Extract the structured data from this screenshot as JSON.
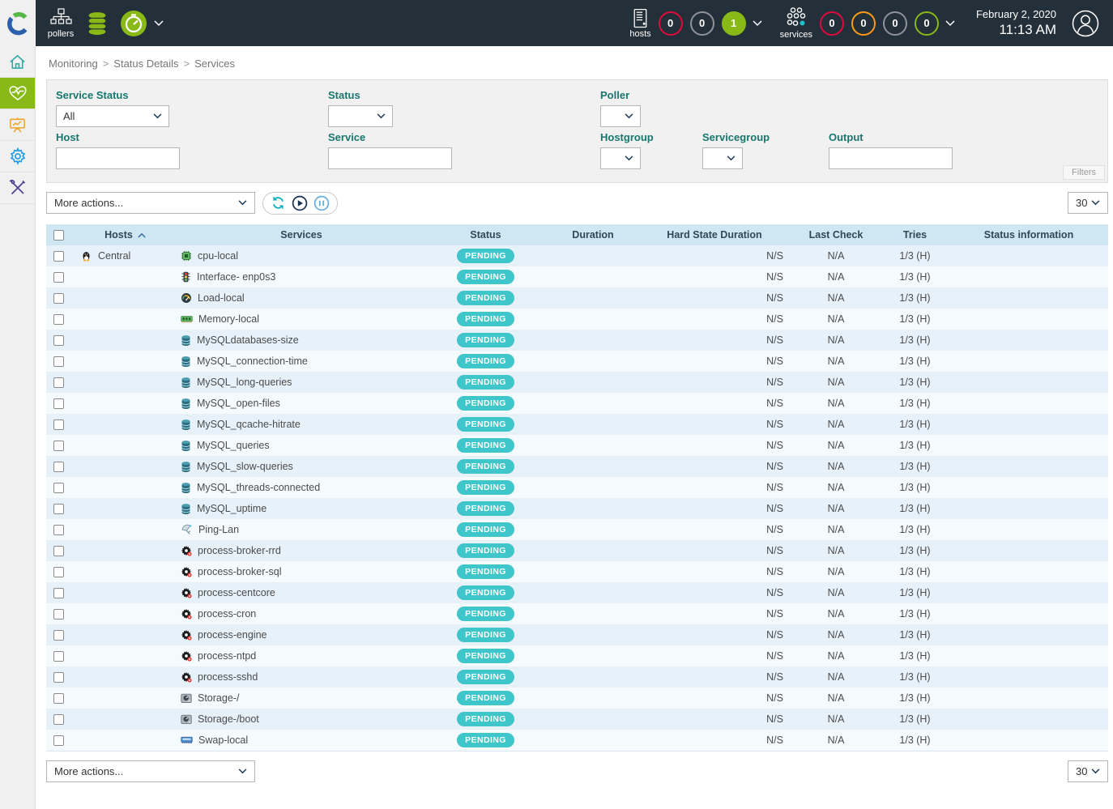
{
  "colors": {
    "critical": "#e00b3c",
    "warning": "#ff9a13",
    "unknown": "#8f9399",
    "ok": "#88b917",
    "pending": "#3ec6ca",
    "topbar_bg": "#232f39",
    "sidebar_active": "#88b917",
    "table_header_bg": "#cfe6f3"
  },
  "topbar": {
    "pollers_label": "pollers",
    "hosts_label": "hosts",
    "hosts_badges": [
      {
        "count": "0",
        "status": "critical",
        "filled": false
      },
      {
        "count": "0",
        "status": "unknown",
        "filled": false
      },
      {
        "count": "1",
        "status": "ok",
        "filled": true
      }
    ],
    "services_label": "services",
    "services_badges": [
      {
        "count": "0",
        "status": "critical",
        "filled": false
      },
      {
        "count": "0",
        "status": "warning",
        "filled": false
      },
      {
        "count": "0",
        "status": "unknown",
        "filled": false
      },
      {
        "count": "0",
        "status": "ok",
        "filled": false
      }
    ],
    "date": "February 2, 2020",
    "time": "11:13 AM"
  },
  "sidebar": {
    "items": [
      {
        "icon": "home-icon",
        "active": false
      },
      {
        "icon": "monitoring-icon",
        "active": true
      },
      {
        "icon": "reporting-icon",
        "active": false
      },
      {
        "icon": "configuration-icon",
        "active": false
      },
      {
        "icon": "administration-icon",
        "active": false
      }
    ]
  },
  "breadcrumb": {
    "items": [
      "Monitoring",
      "Status Details",
      "Services"
    ],
    "separator": ">"
  },
  "filters": {
    "service_status": {
      "label": "Service Status",
      "value": "All"
    },
    "status": {
      "label": "Status",
      "value": ""
    },
    "poller": {
      "label": "Poller",
      "value": ""
    },
    "host": {
      "label": "Host",
      "value": ""
    },
    "service": {
      "label": "Service",
      "value": ""
    },
    "hostgroup": {
      "label": "Hostgroup",
      "value": ""
    },
    "servicegroup": {
      "label": "Servicegroup",
      "value": ""
    },
    "output": {
      "label": "Output",
      "value": ""
    },
    "filters_tab_label": "Filters"
  },
  "toolbar": {
    "more_actions_label": "More actions...",
    "page_size": "30"
  },
  "table": {
    "columns": [
      "Hosts",
      "Services",
      "Status",
      "Duration",
      "Hard State Duration",
      "Last Check",
      "Tries",
      "Status information"
    ],
    "sorted_column": "Hosts",
    "rows": [
      {
        "host": "Central",
        "host_icon": "linux",
        "service": "cpu-local",
        "service_icon": "cpu",
        "status": "PENDING",
        "duration": "",
        "hard_state_duration": "N/S",
        "last_check": "N/A",
        "tries": "1/3 (H)",
        "status_information": ""
      },
      {
        "host": "",
        "host_icon": "",
        "service": "Interface- enp0s3",
        "service_icon": "traffic",
        "status": "PENDING",
        "duration": "",
        "hard_state_duration": "N/S",
        "last_check": "N/A",
        "tries": "1/3 (H)",
        "status_information": ""
      },
      {
        "host": "",
        "host_icon": "",
        "service": "Load-local",
        "service_icon": "gauge",
        "status": "PENDING",
        "duration": "",
        "hard_state_duration": "N/S",
        "last_check": "N/A",
        "tries": "1/3 (H)",
        "status_information": ""
      },
      {
        "host": "",
        "host_icon": "",
        "service": "Memory-local",
        "service_icon": "memory",
        "status": "PENDING",
        "duration": "",
        "hard_state_duration": "N/S",
        "last_check": "N/A",
        "tries": "1/3 (H)",
        "status_information": ""
      },
      {
        "host": "",
        "host_icon": "",
        "service": "MySQLdatabases-size",
        "service_icon": "db",
        "status": "PENDING",
        "duration": "",
        "hard_state_duration": "N/S",
        "last_check": "N/A",
        "tries": "1/3 (H)",
        "status_information": ""
      },
      {
        "host": "",
        "host_icon": "",
        "service": "MySQL_connection-time",
        "service_icon": "db",
        "status": "PENDING",
        "duration": "",
        "hard_state_duration": "N/S",
        "last_check": "N/A",
        "tries": "1/3 (H)",
        "status_information": ""
      },
      {
        "host": "",
        "host_icon": "",
        "service": "MySQL_long-queries",
        "service_icon": "db",
        "status": "PENDING",
        "duration": "",
        "hard_state_duration": "N/S",
        "last_check": "N/A",
        "tries": "1/3 (H)",
        "status_information": ""
      },
      {
        "host": "",
        "host_icon": "",
        "service": "MySQL_open-files",
        "service_icon": "db",
        "status": "PENDING",
        "duration": "",
        "hard_state_duration": "N/S",
        "last_check": "N/A",
        "tries": "1/3 (H)",
        "status_information": ""
      },
      {
        "host": "",
        "host_icon": "",
        "service": "MySQL_qcache-hitrate",
        "service_icon": "db",
        "status": "PENDING",
        "duration": "",
        "hard_state_duration": "N/S",
        "last_check": "N/A",
        "tries": "1/3 (H)",
        "status_information": ""
      },
      {
        "host": "",
        "host_icon": "",
        "service": "MySQL_queries",
        "service_icon": "db",
        "status": "PENDING",
        "duration": "",
        "hard_state_duration": "N/S",
        "last_check": "N/A",
        "tries": "1/3 (H)",
        "status_information": ""
      },
      {
        "host": "",
        "host_icon": "",
        "service": "MySQL_slow-queries",
        "service_icon": "db",
        "status": "PENDING",
        "duration": "",
        "hard_state_duration": "N/S",
        "last_check": "N/A",
        "tries": "1/3 (H)",
        "status_information": ""
      },
      {
        "host": "",
        "host_icon": "",
        "service": "MySQL_threads-connected",
        "service_icon": "db",
        "status": "PENDING",
        "duration": "",
        "hard_state_duration": "N/S",
        "last_check": "N/A",
        "tries": "1/3 (H)",
        "status_information": ""
      },
      {
        "host": "",
        "host_icon": "",
        "service": "MySQL_uptime",
        "service_icon": "db",
        "status": "PENDING",
        "duration": "",
        "hard_state_duration": "N/S",
        "last_check": "N/A",
        "tries": "1/3 (H)",
        "status_information": ""
      },
      {
        "host": "",
        "host_icon": "",
        "service": "Ping-Lan",
        "service_icon": "ping",
        "status": "PENDING",
        "duration": "",
        "hard_state_duration": "N/S",
        "last_check": "N/A",
        "tries": "1/3 (H)",
        "status_information": ""
      },
      {
        "host": "",
        "host_icon": "",
        "service": "process-broker-rrd",
        "service_icon": "process",
        "status": "PENDING",
        "duration": "",
        "hard_state_duration": "N/S",
        "last_check": "N/A",
        "tries": "1/3 (H)",
        "status_information": ""
      },
      {
        "host": "",
        "host_icon": "",
        "service": "process-broker-sql",
        "service_icon": "process",
        "status": "PENDING",
        "duration": "",
        "hard_state_duration": "N/S",
        "last_check": "N/A",
        "tries": "1/3 (H)",
        "status_information": ""
      },
      {
        "host": "",
        "host_icon": "",
        "service": "process-centcore",
        "service_icon": "process",
        "status": "PENDING",
        "duration": "",
        "hard_state_duration": "N/S",
        "last_check": "N/A",
        "tries": "1/3 (H)",
        "status_information": ""
      },
      {
        "host": "",
        "host_icon": "",
        "service": "process-cron",
        "service_icon": "process",
        "status": "PENDING",
        "duration": "",
        "hard_state_duration": "N/S",
        "last_check": "N/A",
        "tries": "1/3 (H)",
        "status_information": ""
      },
      {
        "host": "",
        "host_icon": "",
        "service": "process-engine",
        "service_icon": "process",
        "status": "PENDING",
        "duration": "",
        "hard_state_duration": "N/S",
        "last_check": "N/A",
        "tries": "1/3 (H)",
        "status_information": ""
      },
      {
        "host": "",
        "host_icon": "",
        "service": "process-ntpd",
        "service_icon": "process",
        "status": "PENDING",
        "duration": "",
        "hard_state_duration": "N/S",
        "last_check": "N/A",
        "tries": "1/3 (H)",
        "status_information": ""
      },
      {
        "host": "",
        "host_icon": "",
        "service": "process-sshd",
        "service_icon": "process",
        "status": "PENDING",
        "duration": "",
        "hard_state_duration": "N/S",
        "last_check": "N/A",
        "tries": "1/3 (H)",
        "status_information": ""
      },
      {
        "host": "",
        "host_icon": "",
        "service": "Storage-/",
        "service_icon": "storage",
        "status": "PENDING",
        "duration": "",
        "hard_state_duration": "N/S",
        "last_check": "N/A",
        "tries": "1/3 (H)",
        "status_information": ""
      },
      {
        "host": "",
        "host_icon": "",
        "service": "Storage-/boot",
        "service_icon": "storage",
        "status": "PENDING",
        "duration": "",
        "hard_state_duration": "N/S",
        "last_check": "N/A",
        "tries": "1/3 (H)",
        "status_information": ""
      },
      {
        "host": "",
        "host_icon": "",
        "service": "Swap-local",
        "service_icon": "swap",
        "status": "PENDING",
        "duration": "",
        "hard_state_duration": "N/S",
        "last_check": "N/A",
        "tries": "1/3 (H)",
        "status_information": ""
      }
    ]
  }
}
